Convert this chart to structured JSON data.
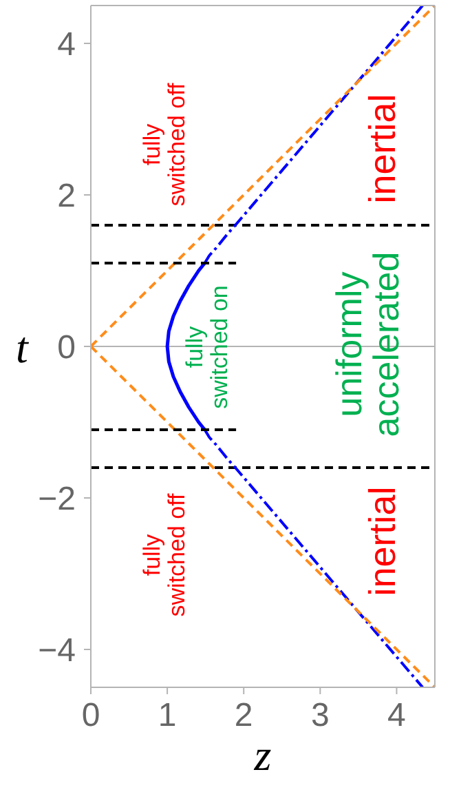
{
  "chart_data": {
    "type": "line",
    "xlabel": "z",
    "ylabel": "t",
    "xlim": [
      0,
      4.5
    ],
    "ylim": [
      -4.5,
      4.5
    ],
    "xticks": [
      0,
      1,
      2,
      3,
      4
    ],
    "yticks": [
      -4,
      -2,
      0,
      2,
      4
    ],
    "marker": "none",
    "series": [
      {
        "color": "#0000ff",
        "line_style": "solid",
        "x": [
          1.49,
          1.41,
          1.28,
          1.17,
          1.08,
          1.02,
          1,
          1.02,
          1.08,
          1.17,
          1.28,
          1.41,
          1.49
        ],
        "values": [
          -1.1,
          -1,
          -0.8,
          -0.6,
          -0.4,
          -0.2,
          0,
          0.2,
          0.4,
          0.6,
          0.8,
          1,
          1.1
        ]
      },
      {
        "color": "#0000ff",
        "line_style": "dashdot",
        "x": [
          1.49,
          1.55,
          1.64,
          1.72,
          1.8,
          1.89,
          4.34
        ],
        "values": [
          1.1,
          1.2,
          1.3,
          1.4,
          1.5,
          1.6,
          4.5
        ]
      },
      {
        "color": "#0000ff",
        "line_style": "dashdot",
        "x": [
          1.49,
          1.55,
          1.64,
          1.72,
          1.8,
          1.89,
          4.34
        ],
        "values": [
          -1.1,
          -1.2,
          -1.3,
          -1.4,
          -1.5,
          -1.6,
          -4.5
        ]
      },
      {
        "color": "#ff8c1a",
        "line_style": "dashed",
        "x": [
          0,
          4.5
        ],
        "values": [
          0,
          4.5
        ]
      },
      {
        "color": "#ff8c1a",
        "line_style": "dashed",
        "x": [
          0,
          4.5
        ],
        "values": [
          0,
          -4.5
        ]
      },
      {
        "color": "#000000",
        "line_style": "dashed",
        "x": [
          0,
          1.9
        ],
        "values": [
          1.1,
          1.1
        ]
      },
      {
        "color": "#000000",
        "line_style": "dashed",
        "x": [
          0,
          1.9
        ],
        "values": [
          -1.1,
          -1.1
        ]
      }
    ],
    "ref_lines": [
      {
        "axis": "y",
        "value": 0,
        "color": "#b4b4b4",
        "line_style": "solid"
      },
      {
        "axis": "y",
        "value": 1.6,
        "color": "#000000",
        "line_style": "dashed"
      },
      {
        "axis": "y",
        "value": -1.6,
        "color": "#000000",
        "line_style": "dashed"
      }
    ],
    "annotations": [
      "fully\nswitched off",
      "fully\nswitched off",
      "fully\nswitched on",
      "uniformly\naccelerated",
      "inertial",
      "inertial"
    ]
  }
}
